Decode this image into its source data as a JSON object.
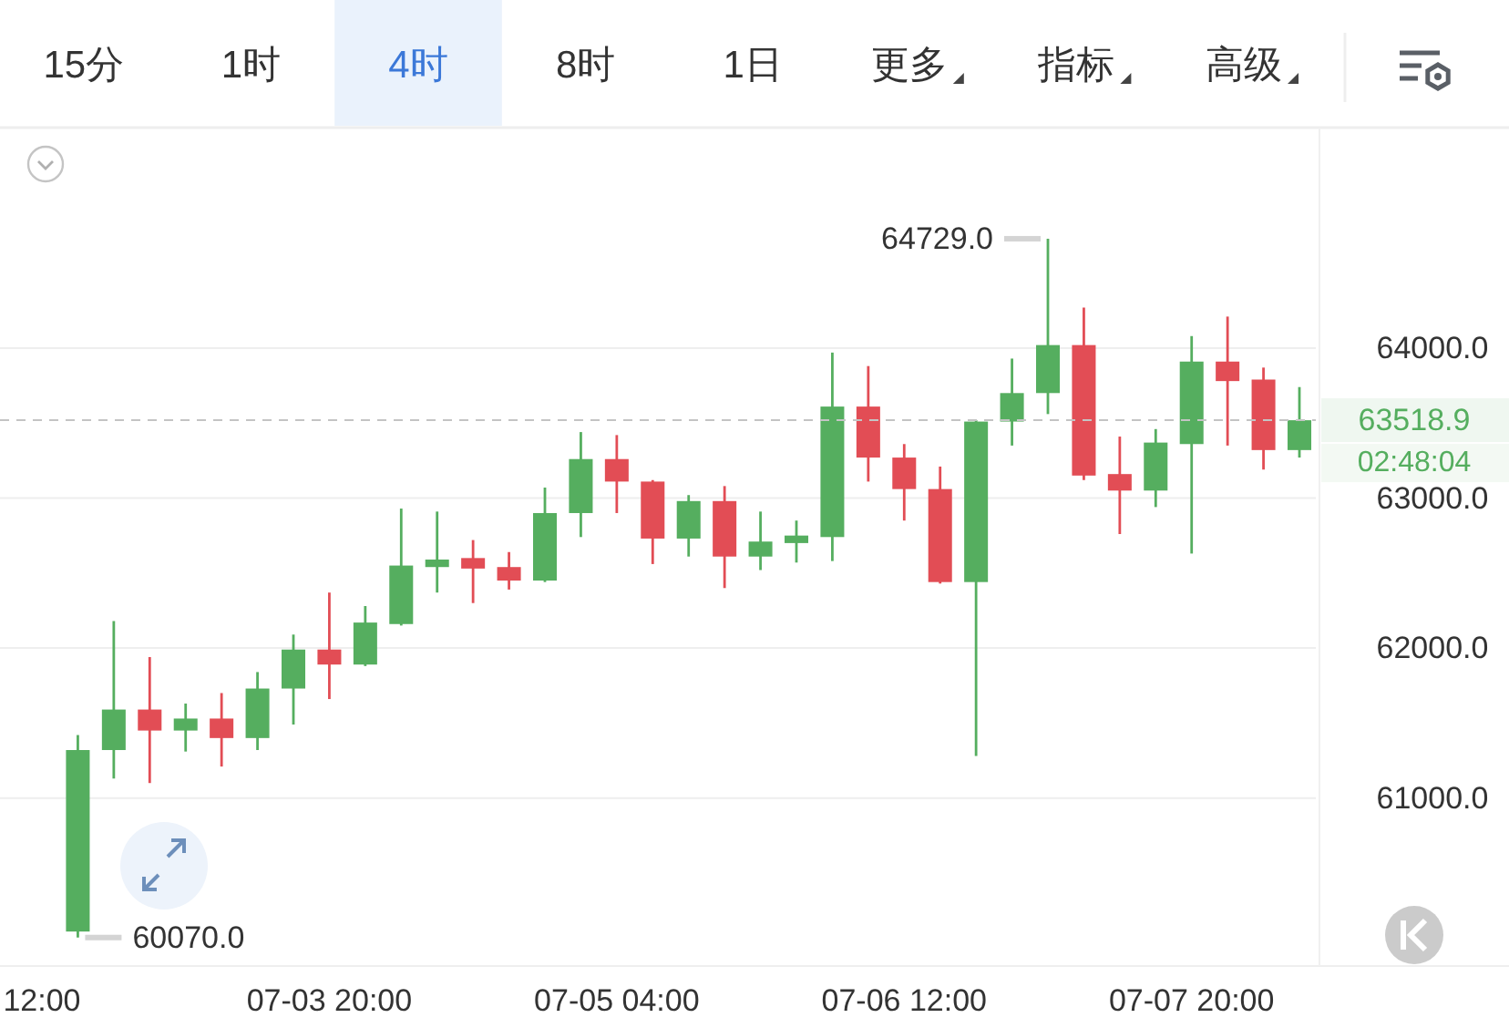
{
  "chart_data": {
    "type": "candlestick",
    "categories": [
      "12:00",
      null,
      null,
      null,
      null,
      null,
      null,
      null,
      "07-03 20:00",
      null,
      null,
      null,
      null,
      null,
      null,
      null,
      "07-05 04:00",
      null,
      null,
      null,
      null,
      null,
      null,
      null,
      "07-06 12:00",
      null,
      null,
      null,
      null,
      null,
      null,
      null,
      "07-07 20:00",
      null,
      null,
      null
    ],
    "ohlc": [
      null,
      [
        60110,
        61420,
        60070,
        61320
      ],
      [
        61320,
        62180,
        61130,
        61590
      ],
      [
        61590,
        61940,
        61100,
        61450
      ],
      [
        61450,
        61630,
        61310,
        61530
      ],
      [
        61530,
        61700,
        61210,
        61400
      ],
      [
        61400,
        61840,
        61320,
        61730
      ],
      [
        61730,
        62090,
        61490,
        61990
      ],
      [
        61990,
        62370,
        61660,
        61890
      ],
      [
        61890,
        62280,
        61880,
        62170
      ],
      [
        62160,
        62930,
        62150,
        62550
      ],
      [
        62540,
        62910,
        62370,
        62590
      ],
      [
        62600,
        62720,
        62300,
        62530
      ],
      [
        62540,
        62640,
        62390,
        62450
      ],
      [
        62450,
        63070,
        62440,
        62900
      ],
      [
        62900,
        63440,
        62740,
        63260
      ],
      [
        63260,
        63420,
        62900,
        63110
      ],
      [
        63110,
        63120,
        62560,
        62730
      ],
      [
        62730,
        63020,
        62610,
        62980
      ],
      [
        62980,
        63080,
        62400,
        62610
      ],
      [
        62610,
        62910,
        62520,
        62710
      ],
      [
        62700,
        62850,
        62570,
        62750
      ],
      [
        62740,
        63970,
        62580,
        63610
      ],
      [
        63610,
        63880,
        63110,
        63270
      ],
      [
        63270,
        63360,
        62850,
        63060
      ],
      [
        63060,
        63210,
        62430,
        62440
      ],
      [
        62440,
        63520,
        61280,
        63510
      ],
      [
        63510,
        63930,
        63350,
        63700
      ],
      [
        63700,
        64729,
        63560,
        64020
      ],
      [
        64020,
        64270,
        63120,
        63150
      ],
      [
        63160,
        63410,
        62760,
        63050
      ],
      [
        63050,
        63460,
        62940,
        63370
      ],
      [
        63360,
        64080,
        62630,
        63910
      ],
      [
        63910,
        64210,
        63350,
        63780
      ],
      [
        63790,
        63870,
        63190,
        63320
      ],
      [
        63320,
        63740,
        63270,
        63518.9
      ]
    ],
    "colors": [
      null,
      "#55ae5f",
      "#55ae5f",
      "#e24d55",
      "#55ae5f",
      "#e24d55",
      "#55ae5f",
      "#55ae5f",
      "#e24d55",
      "#55ae5f",
      "#55ae5f",
      "#55ae5f",
      "#e24d55",
      "#e24d55",
      "#55ae5f",
      "#55ae5f",
      "#e24d55",
      "#e24d55",
      "#55ae5f",
      "#e24d55",
      "#55ae5f",
      "#55ae5f",
      "#55ae5f",
      "#e24d55",
      "#e24d55",
      "#e24d55",
      "#55ae5f",
      "#55ae5f",
      "#55ae5f",
      "#e24d55",
      "#e24d55",
      "#55ae5f",
      "#55ae5f",
      "#e24d55",
      "#e24d55",
      "#55ae5f"
    ],
    "ylim": [
      59880,
      65470
    ],
    "yticks": [
      {
        "value": 61000,
        "label": "61000.0"
      },
      {
        "value": 62000,
        "label": "62000.0"
      },
      {
        "value": 63000,
        "label": "63000.0"
      },
      {
        "value": 64000,
        "label": "64000.0"
      }
    ],
    "grid": "y",
    "ref_lines": [
      {
        "axis": "y",
        "value": 63518.9,
        "label": "63518.9",
        "color": "#c4c4c4",
        "line_style": "dashed"
      }
    ],
    "annotations": [
      "15分",
      "1时",
      "4时",
      "8时",
      "1日",
      "更多",
      "指标",
      "高级",
      "02:48:04",
      "64729.0",
      "60070.0"
    ]
  }
}
